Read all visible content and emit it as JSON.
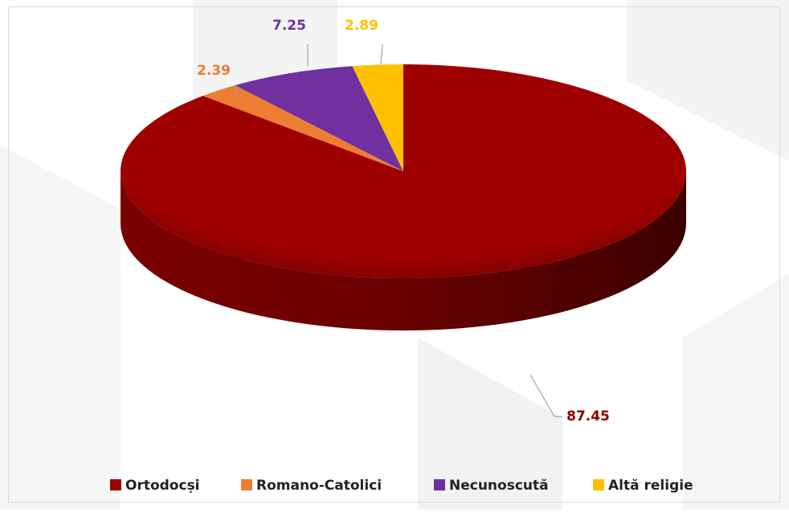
{
  "chart_data": {
    "type": "pie3d",
    "categories": [
      "Ortodocși",
      "Romano-Catolici",
      "Necunoscută",
      "Altă religie"
    ],
    "values": [
      87.45,
      2.39,
      7.25,
      2.89
    ],
    "colors": [
      "#9e0000",
      "#ed7d31",
      "#7030a0",
      "#ffc000"
    ],
    "legend": "bottom"
  }
}
